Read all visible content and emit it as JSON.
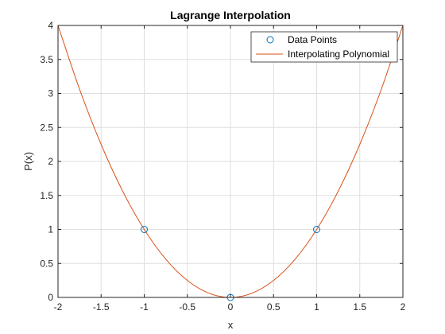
{
  "chart_data": {
    "type": "line",
    "title": "Lagrange Interpolation",
    "xlabel": "x",
    "ylabel": "P(x)",
    "xlim": [
      -2,
      2
    ],
    "ylim": [
      0,
      4
    ],
    "xticks": [
      -2,
      -1.5,
      -1,
      -0.5,
      0,
      0.5,
      1,
      1.5,
      2
    ],
    "xtick_labels": [
      "-2",
      "-1.5",
      "-1",
      "-0.5",
      "0",
      "0.5",
      "1",
      "1.5",
      "2"
    ],
    "yticks": [
      0,
      0.5,
      1,
      1.5,
      2,
      2.5,
      3,
      3.5,
      4
    ],
    "ytick_labels": [
      "0",
      "0.5",
      "1",
      "1.5",
      "2",
      "2.5",
      "3",
      "3.5",
      "4"
    ],
    "grid": true,
    "legend_position": "top-right",
    "series": [
      {
        "name": "Data Points",
        "kind": "markers",
        "marker": "circle",
        "color": "#0072BD",
        "x": [
          -1,
          0,
          1
        ],
        "y": [
          1,
          0,
          1
        ]
      },
      {
        "name": "Interpolating Polynomial",
        "kind": "line",
        "color": "#D95319",
        "x": [
          -2,
          -1.75,
          -1.5,
          -1.25,
          -1,
          -0.75,
          -0.5,
          -0.25,
          0,
          0.25,
          0.5,
          0.75,
          1,
          1.25,
          1.5,
          1.75,
          2
        ],
        "y": [
          4,
          3.0625,
          2.25,
          1.5625,
          1,
          0.5625,
          0.25,
          0.0625,
          0,
          0.0625,
          0.25,
          0.5625,
          1,
          1.5625,
          2.25,
          3.0625,
          4
        ]
      }
    ]
  }
}
